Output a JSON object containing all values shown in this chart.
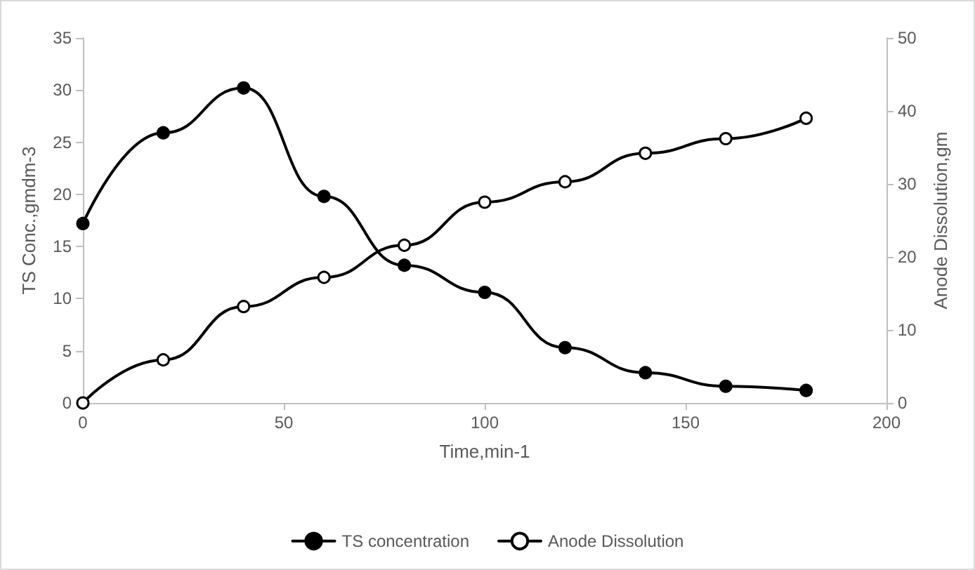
{
  "chart_data": {
    "type": "line",
    "xlabel": "Time,min-1",
    "ylabel": "TS Conc.,gmdm-3",
    "y2label": "Anode Dissolution,gm",
    "x": [
      0,
      20,
      40,
      60,
      80,
      100,
      120,
      140,
      160,
      180
    ],
    "series": [
      {
        "name": "TS concentration",
        "color": "#000000",
        "values": [
          17.2,
          25.9,
          30.2,
          19.8,
          13.2,
          10.6,
          5.3,
          2.9,
          1.6,
          1.2
        ]
      },
      {
        "name": "Anode Dissolution",
        "color": "#000000",
        "axis": "y2",
        "values": [
          0,
          5.9,
          13.2,
          17.2,
          21.6,
          27.5,
          30.3,
          34.2,
          36.2,
          39
        ]
      }
    ],
    "xlim": [
      0,
      200
    ],
    "xticks": [
      0,
      50,
      100,
      150,
      200
    ],
    "ylim": [
      0,
      35
    ],
    "yticks": [
      0,
      5,
      10,
      15,
      20,
      25,
      30,
      35
    ],
    "y2lim": [
      0,
      50
    ],
    "y2ticks": [
      0,
      10,
      20,
      30,
      40,
      50
    ],
    "grid": false,
    "legend": "bottom",
    "marker": "circle",
    "line_style": "solid"
  }
}
